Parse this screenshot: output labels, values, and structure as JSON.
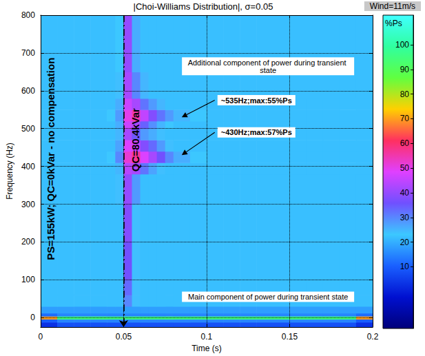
{
  "chart_data": {
    "type": "heatmap",
    "title": "|Choi-Williams Distribution|, σ=0.05",
    "subtitle": "Wind=11m/s",
    "x_label": "Time (s)",
    "y_label": "Frequency (Hz)",
    "xlim": [
      0,
      0.2
    ],
    "xticks": [
      0,
      0.05,
      0.1,
      0.15,
      0.2
    ],
    "ylim": [
      -25,
      800
    ],
    "yticks": [
      0,
      100,
      200,
      300,
      400,
      500,
      600,
      700,
      800
    ],
    "grid": true,
    "time_bins": [
      0,
      0.01,
      0.02,
      0.03,
      0.04,
      0.045,
      0.05,
      0.055,
      0.06,
      0.065,
      0.07,
      0.075,
      0.08,
      0.09,
      0.1,
      0.11,
      0.12,
      0.13,
      0.14,
      0.15,
      0.16,
      0.17,
      0.18,
      0.19,
      0.2
    ],
    "frequency_bins": [
      -25,
      -12,
      -4,
      4,
      12,
      30,
      60,
      100,
      200,
      300,
      380,
      410,
      440,
      470,
      500,
      520,
      550,
      580,
      650,
      800
    ],
    "cells": [
      [
        3,
        8,
        8,
        8,
        8,
        8,
        8,
        8,
        8,
        8,
        8,
        8,
        8,
        8,
        8,
        8,
        8,
        8,
        8,
        8,
        8,
        8,
        8,
        3
      ],
      [
        10,
        15,
        15,
        15,
        15,
        15,
        15,
        15,
        15,
        15,
        15,
        15,
        15,
        15,
        15,
        15,
        15,
        15,
        15,
        15,
        15,
        15,
        15,
        10
      ],
      [
        70,
        95,
        95,
        95,
        95,
        95,
        95,
        95,
        95,
        95,
        95,
        95,
        95,
        95,
        95,
        95,
        95,
        95,
        95,
        95,
        95,
        95,
        95,
        70
      ],
      [
        12,
        15,
        15,
        15,
        15,
        15,
        15,
        15,
        15,
        15,
        15,
        15,
        15,
        15,
        15,
        15,
        15,
        15,
        15,
        15,
        15,
        15,
        15,
        12
      ],
      [
        18,
        18,
        18,
        18,
        18,
        18,
        18,
        18,
        18,
        18,
        18,
        18,
        18,
        18,
        18,
        18,
        18,
        18,
        18,
        18,
        18,
        18,
        18,
        18
      ],
      [
        22,
        22,
        22,
        22,
        22,
        22,
        30,
        24,
        22,
        22,
        22,
        22,
        22,
        22,
        22,
        22,
        22,
        22,
        22,
        22,
        22,
        22,
        22,
        22
      ],
      [
        22,
        22,
        22,
        22,
        22,
        22,
        33,
        24,
        22,
        22,
        22,
        22,
        22,
        22,
        22,
        22,
        22,
        22,
        22,
        22,
        22,
        22,
        22,
        22
      ],
      [
        22,
        22,
        22,
        22,
        22,
        22,
        36,
        24,
        22,
        22,
        22,
        22,
        22,
        22,
        22,
        22,
        22,
        22,
        22,
        22,
        22,
        22,
        22,
        22
      ],
      [
        22,
        22,
        22,
        22,
        22,
        22,
        38,
        24,
        22,
        22,
        22,
        22,
        22,
        22,
        22,
        22,
        22,
        22,
        22,
        22,
        22,
        22,
        22,
        22
      ],
      [
        22,
        22,
        22,
        22,
        22,
        24,
        40,
        28,
        22,
        22,
        22,
        22,
        22,
        22,
        22,
        22,
        22,
        22,
        22,
        22,
        22,
        22,
        22,
        22
      ],
      [
        22,
        22,
        22,
        22,
        22,
        25,
        44,
        42,
        32,
        27,
        24,
        22,
        22,
        22,
        22,
        22,
        22,
        22,
        22,
        22,
        22,
        22,
        22,
        22
      ],
      [
        22,
        22,
        22,
        22,
        23,
        30,
        52,
        57,
        48,
        42,
        36,
        30,
        26,
        23,
        22,
        22,
        22,
        22,
        22,
        22,
        22,
        22,
        22,
        22
      ],
      [
        22,
        22,
        22,
        22,
        22,
        27,
        48,
        46,
        38,
        33,
        28,
        24,
        22,
        22,
        22,
        22,
        22,
        22,
        22,
        22,
        22,
        22,
        22,
        22
      ],
      [
        22,
        22,
        22,
        22,
        22,
        25,
        42,
        35,
        28,
        26,
        24,
        22,
        22,
        22,
        22,
        22,
        22,
        22,
        22,
        22,
        22,
        22,
        22,
        22
      ],
      [
        22,
        22,
        22,
        22,
        22,
        26,
        46,
        42,
        34,
        29,
        25,
        23,
        22,
        22,
        22,
        22,
        22,
        22,
        22,
        22,
        22,
        22,
        22,
        22
      ],
      [
        22,
        22,
        22,
        22,
        23,
        28,
        50,
        55,
        45,
        38,
        32,
        28,
        25,
        23,
        22,
        22,
        22,
        22,
        22,
        22,
        22,
        22,
        22,
        22
      ],
      [
        22,
        22,
        22,
        22,
        22,
        26,
        46,
        42,
        32,
        28,
        25,
        22,
        22,
        22,
        22,
        22,
        22,
        22,
        22,
        22,
        22,
        22,
        22,
        22
      ],
      [
        22,
        22,
        22,
        22,
        22,
        24,
        42,
        30,
        25,
        22,
        22,
        22,
        22,
        22,
        22,
        22,
        22,
        22,
        22,
        22,
        22,
        22,
        22,
        22
      ],
      [
        22,
        22,
        22,
        22,
        22,
        23,
        40,
        26,
        22,
        22,
        22,
        22,
        22,
        22,
        22,
        22,
        22,
        22,
        22,
        22,
        22,
        22,
        22,
        22
      ]
    ],
    "colorbar": {
      "label": "%Ps",
      "range": [
        -15,
        112
      ],
      "ticks": [
        10,
        20,
        30,
        40,
        50,
        60,
        70,
        80,
        90,
        100
      ]
    },
    "vlines": [
      {
        "x": 0.05,
        "line_style": "dashdot"
      }
    ],
    "annotations": [
      {
        "text": "Additional component of power during transient state",
        "x": 0.137,
        "y": 665
      },
      {
        "text": "~535Hz;max:55%Ps",
        "x": 0.13,
        "y": 575,
        "arrow_to": [
          0.085,
          530
        ]
      },
      {
        "text": "~430Hz;max:57%Ps",
        "x": 0.13,
        "y": 490,
        "arrow_to": [
          0.085,
          430
        ]
      },
      {
        "text": "Main component of power during transient state",
        "x": 0.137,
        "y": 55
      }
    ],
    "vertical_annotations": [
      {
        "text": "PS=155kW; QC=0kVar - no compensation",
        "x": 0.006,
        "y": 420
      },
      {
        "text": "QC=80.4kVar",
        "x": 0.057,
        "y": 470
      }
    ]
  }
}
